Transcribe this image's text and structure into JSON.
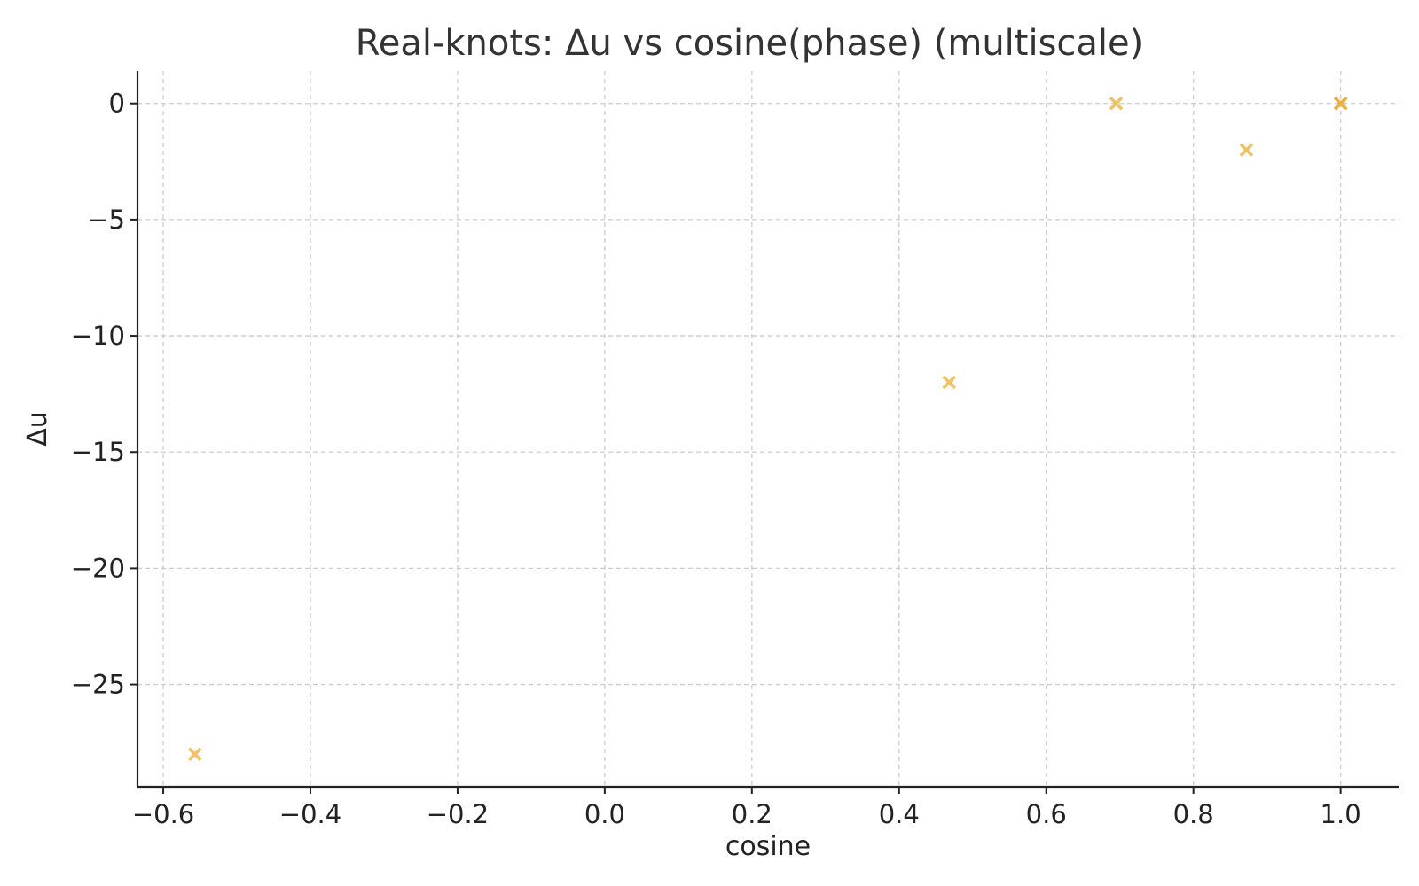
{
  "chart_data": {
    "type": "scatter",
    "title": "Real-knots: Δu vs cosine(phase) (multiscale)",
    "xlabel": "cosine",
    "ylabel": "Δu",
    "xlim": [
      -0.635,
      1.08
    ],
    "ylim": [
      -29.4,
      1.4
    ],
    "xticks": [
      -0.6,
      -0.4,
      -0.2,
      0.0,
      0.2,
      0.4,
      0.6,
      0.8,
      1.0
    ],
    "xtick_labels": [
      "−0.6",
      "−0.4",
      "−0.2",
      "0.0",
      "0.2",
      "0.4",
      "0.6",
      "0.8",
      "1.0"
    ],
    "yticks": [
      0,
      -5,
      -10,
      -15,
      -20,
      -25
    ],
    "ytick_labels": [
      "0",
      "−5",
      "−10",
      "−15",
      "−20",
      "−25"
    ],
    "grid": true,
    "marker": "x",
    "marker_color": "#E8B140",
    "series": [
      {
        "points": [
          {
            "x": -0.557,
            "y": -28
          },
          {
            "x": 0.468,
            "y": -12
          },
          {
            "x": 0.695,
            "y": 0
          },
          {
            "x": 0.872,
            "y": -2
          },
          {
            "x": 1.0,
            "y": 0
          },
          {
            "x": 1.0,
            "y": 0
          },
          {
            "x": 1.0,
            "y": 0
          }
        ]
      }
    ]
  }
}
